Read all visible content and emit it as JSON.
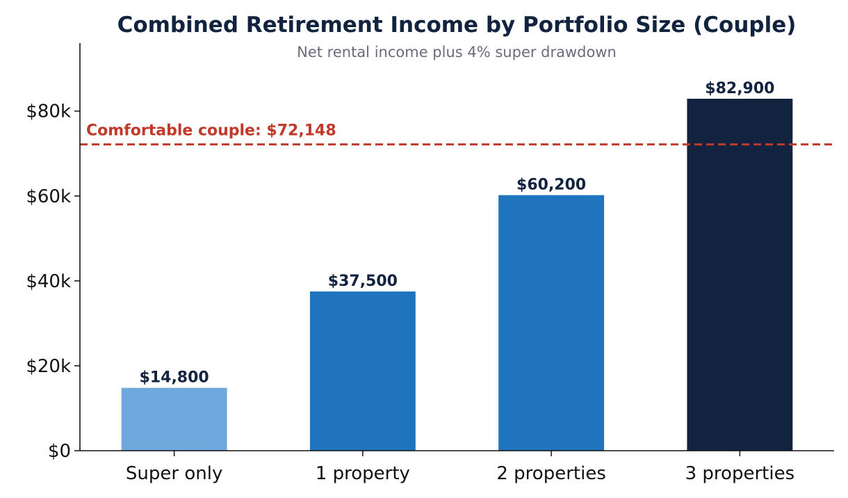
{
  "chart_data": {
    "type": "bar",
    "title": "Combined Retirement Income by Portfolio Size (Couple)",
    "subtitle": "Net rental income plus 4% super drawdown",
    "categories": [
      "Super only",
      "1 property",
      "2 properties",
      "3 properties"
    ],
    "values": [
      14800,
      37500,
      60200,
      82900
    ],
    "value_labels": [
      "$14,800",
      "$37,500",
      "$60,200",
      "$82,900"
    ],
    "bar_colors": [
      "#6fa8dc",
      "#1f74bd",
      "#1f74bd",
      "#12233f"
    ],
    "ylim": [
      0,
      96000
    ],
    "y_ticks": [
      0,
      20000,
      40000,
      60000,
      80000
    ],
    "y_tick_labels": [
      "$0",
      "$20k",
      "$40k",
      "$60k",
      "$80k"
    ],
    "xlabel": "",
    "ylabel": "",
    "grid": false,
    "reference_line": {
      "value": 72148,
      "label": "Comfortable couple: $72,148",
      "color": "#c0392b",
      "style": "dashed"
    }
  }
}
